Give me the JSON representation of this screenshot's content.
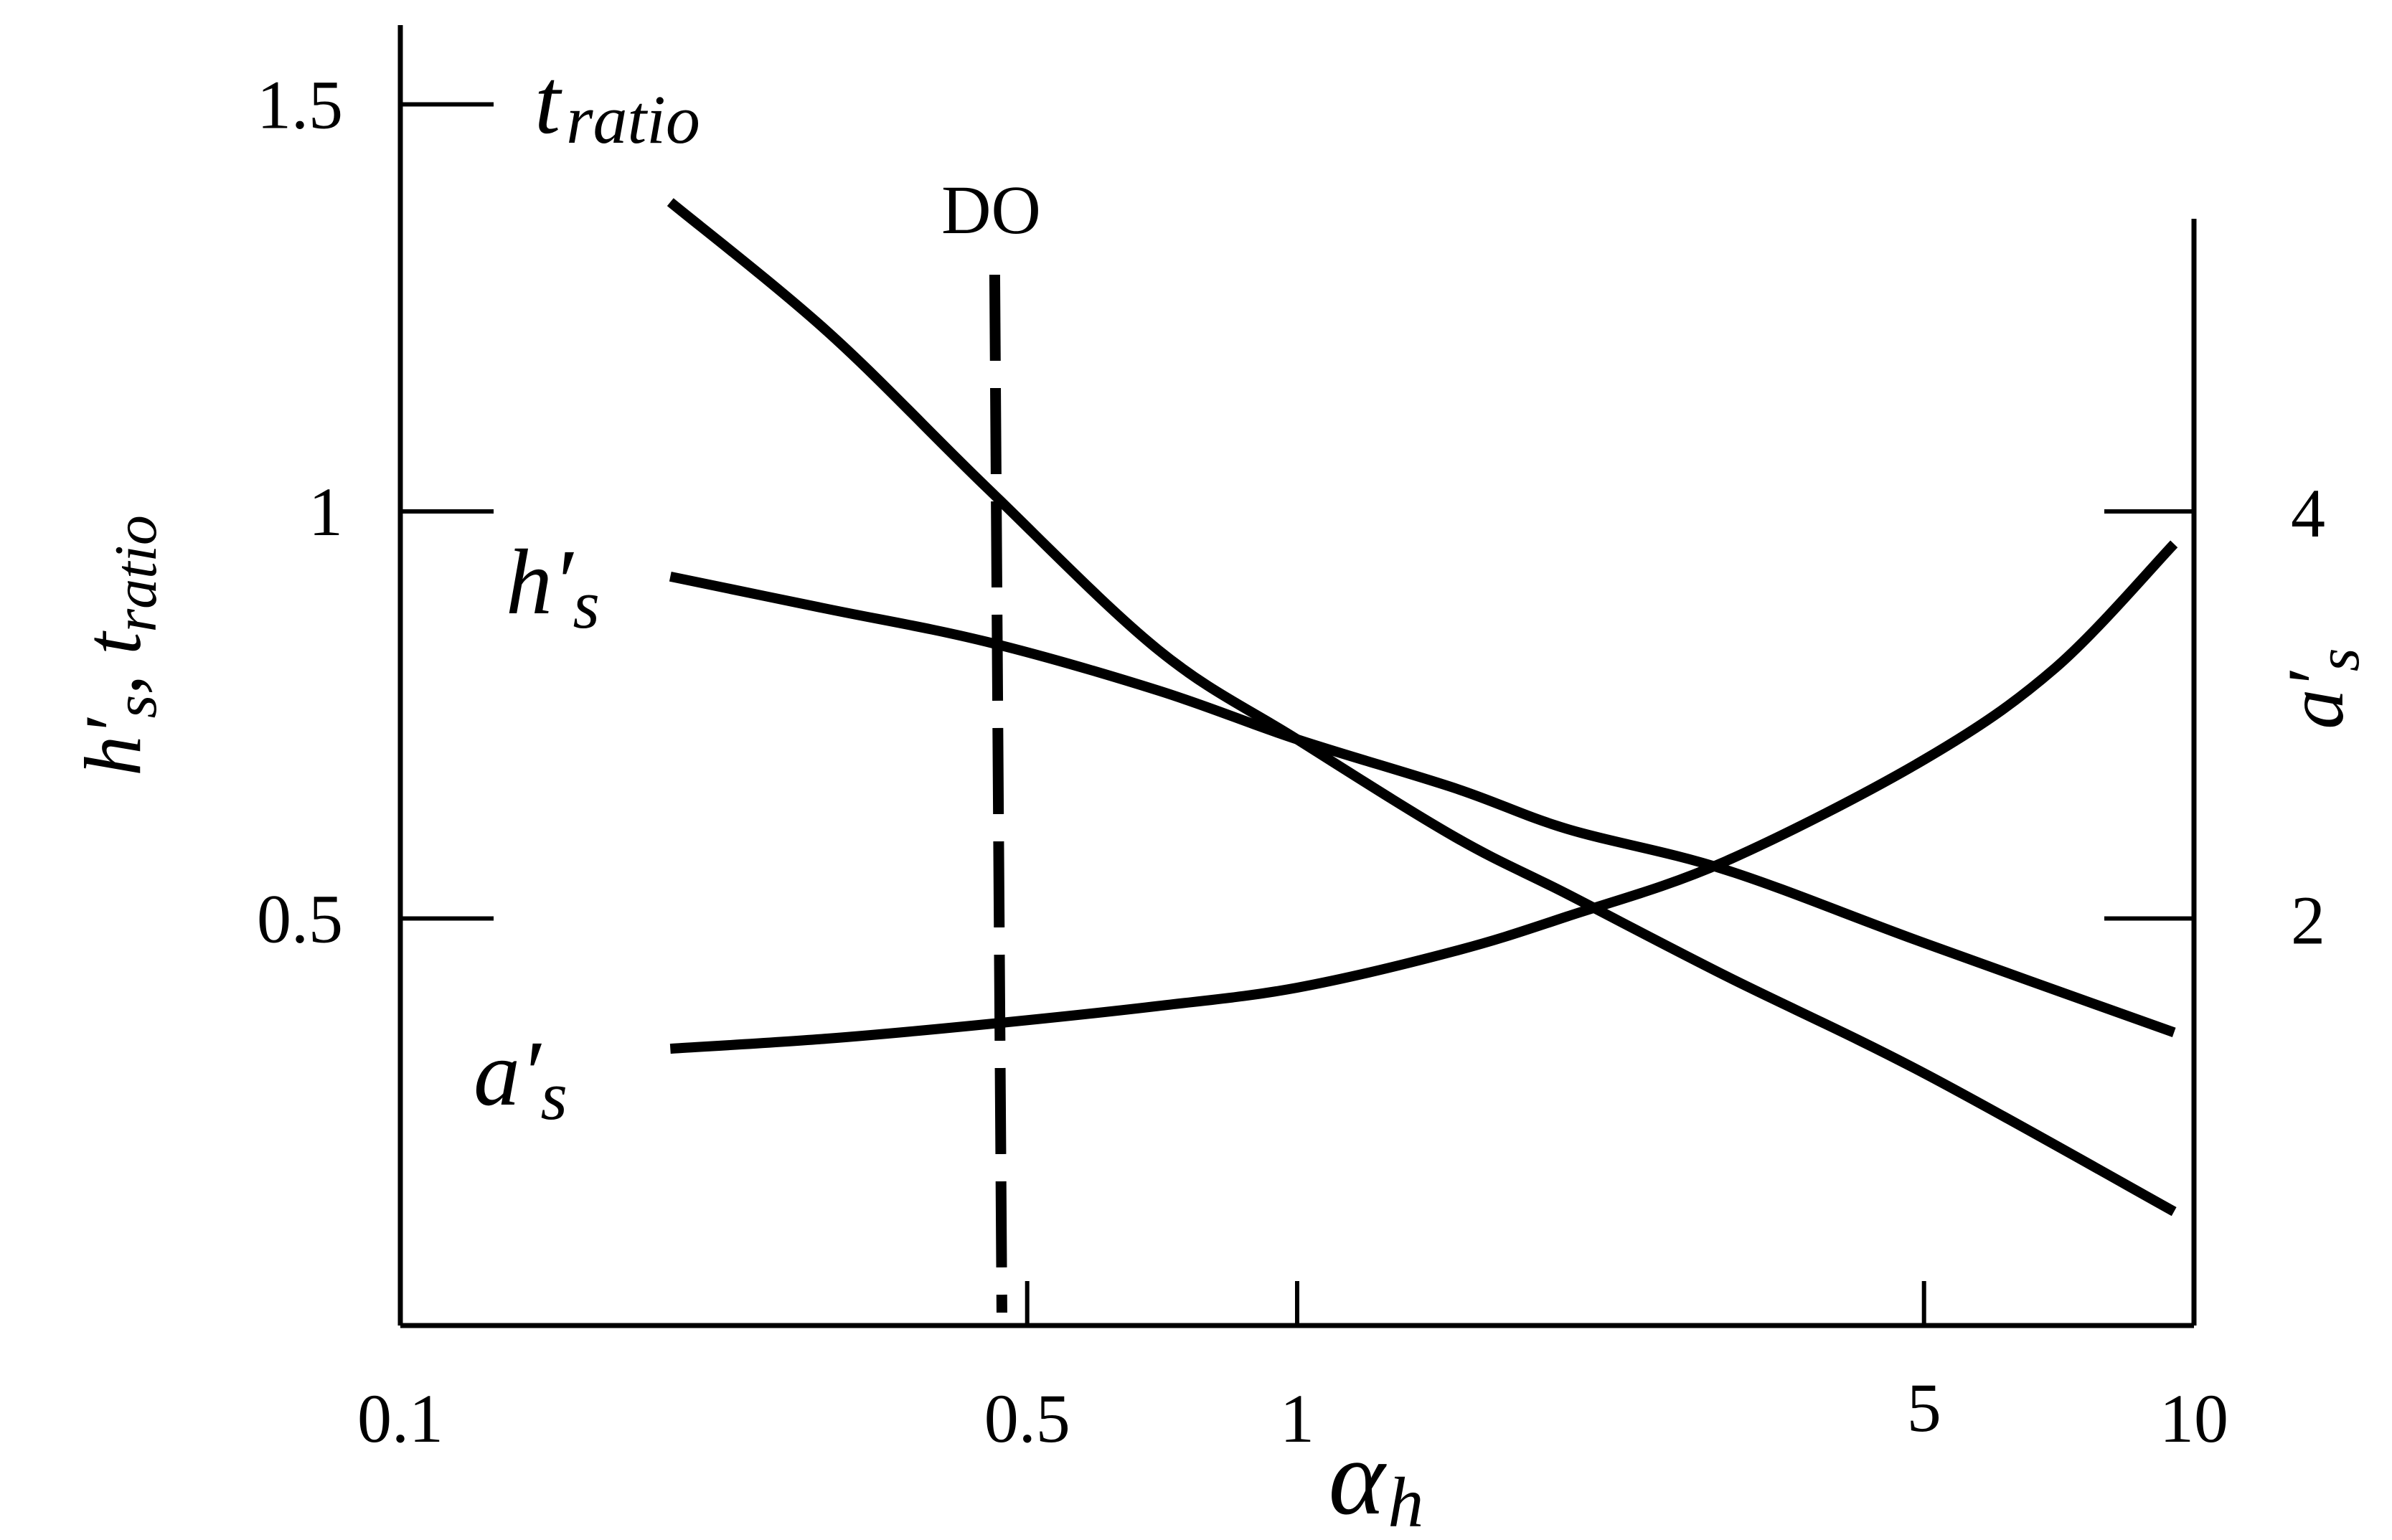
{
  "chart_data": {
    "type": "line",
    "title": "",
    "x_axis": {
      "label_symbol": "α",
      "label_sub": "h",
      "scale": "log",
      "range": [
        0.1,
        10
      ],
      "ticks": [
        0.1,
        0.5,
        1,
        5,
        10
      ],
      "tick_labels": [
        "0.1",
        "0.5",
        "1",
        "5",
        "10"
      ]
    },
    "y_axis_left": {
      "label_main": "h′",
      "label_sub1": "s",
      "label_sep": ", t",
      "label_sub2": "ratio",
      "range": [
        0,
        1.6
      ],
      "ticks": [
        0.5,
        1,
        1.5
      ],
      "tick_labels": [
        "0.5",
        "1",
        "1.5"
      ]
    },
    "y_axis_right": {
      "label_main": "a′",
      "label_sub": "s",
      "range": [
        0,
        4
      ],
      "ticks": [
        2,
        4
      ],
      "tick_labels": [
        "2",
        "4"
      ]
    },
    "series": [
      {
        "name_main": "t",
        "name_sub": "ratio",
        "axis": "left",
        "x": [
          0.2,
          0.3,
          0.45,
          0.7,
          1.0,
          1.5,
          2.0,
          3.0,
          5.0,
          9.5
        ],
        "y": [
          1.38,
          1.22,
          1.03,
          0.83,
          0.72,
          0.6,
          0.53,
          0.43,
          0.31,
          0.14
        ]
      },
      {
        "name_main": "h′",
        "name_sub": "s",
        "axis": "left",
        "x": [
          0.2,
          0.3,
          0.45,
          0.7,
          1.0,
          1.5,
          2.0,
          3.0,
          5.0,
          9.5
        ],
        "y": [
          0.92,
          0.88,
          0.84,
          0.78,
          0.72,
          0.66,
          0.61,
          0.56,
          0.47,
          0.36
        ]
      },
      {
        "name_main": "a′",
        "name_sub": "s",
        "axis": "right",
        "x": [
          0.2,
          0.3,
          0.45,
          0.7,
          1.0,
          1.5,
          2.0,
          3.0,
          5.0,
          7.0,
          9.5
        ],
        "y": [
          1.36,
          1.41,
          1.48,
          1.57,
          1.66,
          1.84,
          2.01,
          2.28,
          2.78,
          3.23,
          3.84
        ]
      }
    ],
    "annotations": [
      {
        "label": "DO",
        "x": 0.46,
        "style": "dashed-vertical"
      }
    ]
  }
}
